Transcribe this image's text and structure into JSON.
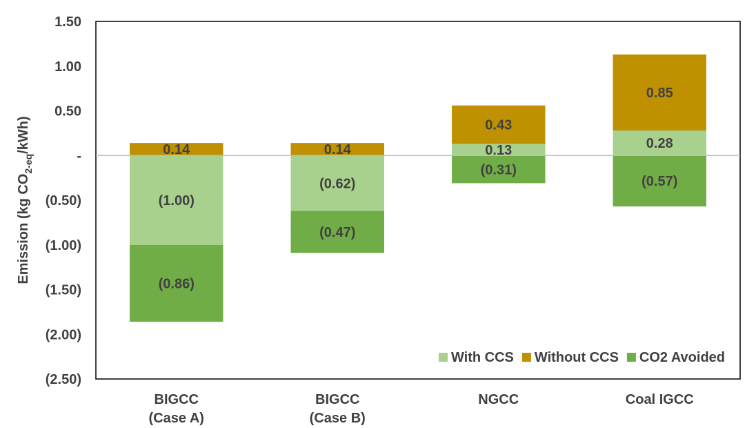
{
  "chart_data": {
    "type": "bar",
    "stacked": true,
    "categories": [
      [
        "BIGCC",
        "(Case A)"
      ],
      [
        "BIGCC",
        "(Case B)"
      ],
      [
        "NGCC"
      ],
      [
        "Coal IGCC"
      ]
    ],
    "series": [
      {
        "name": "With CCS",
        "color": "#a9d18e",
        "values": [
          -1.0,
          -0.62,
          0.13,
          0.28
        ],
        "labels": [
          "(1.00)",
          "(0.62)",
          "0.13",
          "0.28"
        ]
      },
      {
        "name": "Without CCS",
        "color": "#bf9000",
        "values": [
          0.14,
          0.14,
          0.43,
          0.85
        ],
        "labels": [
          "0.14",
          "0.14",
          "0.43",
          "0.85"
        ]
      },
      {
        "name": "CO2 Avoided",
        "color": "#70ad47",
        "values": [
          -0.86,
          -0.47,
          -0.31,
          -0.57
        ],
        "labels": [
          "(0.86)",
          "(0.47)",
          "(0.31)",
          "(0.57)"
        ]
      }
    ],
    "ylim": [
      -2.5,
      1.5
    ],
    "yticks": [
      {
        "value": 1.5,
        "label": "1.50"
      },
      {
        "value": 1.0,
        "label": "1.00"
      },
      {
        "value": 0.5,
        "label": "0.50"
      },
      {
        "value": 0.0,
        "label": "-"
      },
      {
        "value": -0.5,
        "label": "(0.50)"
      },
      {
        "value": -1.0,
        "label": "(1.00)"
      },
      {
        "value": -1.5,
        "label": "(1.50)"
      },
      {
        "value": -2.0,
        "label": "(2.00)"
      },
      {
        "value": -2.5,
        "label": "(2.50)"
      }
    ],
    "ylabel": {
      "main": "Emission (kg CO",
      "subscript": "2-eq",
      "tail": "/kWh)"
    },
    "xlabel": "",
    "legend_position": "bottom-right",
    "grid": false
  }
}
